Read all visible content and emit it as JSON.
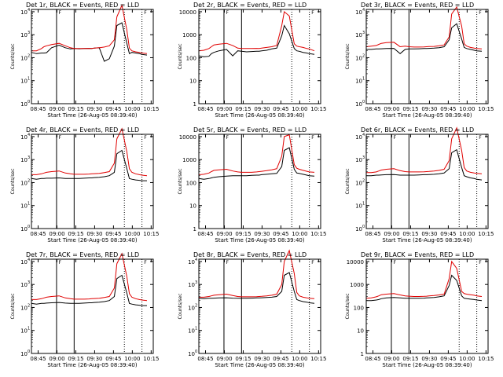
{
  "figure": {
    "x_tick_labels": [
      "08:45",
      "09:00",
      "09:15",
      "09:30",
      "09:45",
      "10:00",
      "10:15"
    ],
    "xlabel": "Start Time (26-Aug-05 08:39:40)",
    "ylabel": "Counts/sec",
    "colors": {
      "events": "#000000",
      "lld": "#e00000",
      "axes": "#000000"
    }
  },
  "chart_data": [
    {
      "type": "line",
      "title": "Det 1r, BLACK = Events, RED = LLD",
      "marker": "F",
      "ytick_style": "exp",
      "x_minutes": [
        0,
        4,
        8,
        10,
        12,
        16,
        22,
        27,
        31,
        34,
        38,
        42,
        46,
        48,
        50,
        54,
        58,
        62,
        66,
        68,
        72,
        76,
        78,
        80,
        83,
        86,
        88,
        92
      ],
      "series": [
        {
          "name": "Events",
          "values": [
            170,
            150,
            160,
            160,
            165,
            270,
            350,
            270,
            240,
            250,
            245,
            250,
            255,
            250,
            260,
            270,
            70,
            90,
            320,
            2500,
            3300,
            420,
            150,
            170,
            160,
            150,
            140,
            130
          ]
        },
        {
          "name": "LLD",
          "values": [
            200,
            200,
            250,
            300,
            330,
            370,
            420,
            330,
            270,
            250,
            250,
            250,
            255,
            250,
            260,
            270,
            290,
            330,
            600,
            6000,
            19000,
            1600,
            260,
            200,
            180,
            170,
            160,
            150
          ]
        }
      ]
    },
    {
      "type": "line",
      "title": "Det 2r, BLACK = Events, RED = LLD",
      "marker": "F",
      "ytick_style": "lin",
      "x_minutes": [
        0,
        4,
        8,
        10,
        12,
        16,
        22,
        27,
        31,
        34,
        38,
        42,
        46,
        48,
        50,
        54,
        58,
        62,
        66,
        68,
        72,
        76,
        78,
        80,
        83,
        86,
        88,
        92
      ],
      "series": [
        {
          "name": "Events",
          "values": [
            120,
            110,
            115,
            150,
            170,
            200,
            230,
            120,
            200,
            190,
            180,
            185,
            190,
            190,
            200,
            210,
            240,
            260,
            900,
            2500,
            1100,
            250,
            200,
            190,
            170,
            160,
            150,
            140
          ]
        },
        {
          "name": "LLD",
          "values": [
            200,
            210,
            250,
            300,
            360,
            390,
            420,
            340,
            260,
            250,
            250,
            250,
            255,
            250,
            260,
            280,
            300,
            340,
            2500,
            10000,
            6500,
            400,
            320,
            300,
            280,
            250,
            240,
            200
          ]
        }
      ]
    },
    {
      "type": "line",
      "title": "Det 3r, BLACK = Events, RED = LLD",
      "marker": "F",
      "ytick_style": "exp",
      "x_minutes": [
        0,
        4,
        8,
        10,
        12,
        16,
        22,
        27,
        31,
        34,
        38,
        42,
        46,
        48,
        50,
        54,
        58,
        62,
        66,
        68,
        72,
        76,
        78,
        80,
        83,
        86,
        88,
        92
      ],
      "series": [
        {
          "name": "Events",
          "values": [
            230,
            230,
            240,
            240,
            245,
            250,
            255,
            150,
            230,
            240,
            240,
            245,
            250,
            250,
            255,
            260,
            270,
            300,
            600,
            2000,
            3000,
            650,
            280,
            250,
            230,
            210,
            200,
            190
          ]
        },
        {
          "name": "LLD",
          "values": [
            300,
            320,
            340,
            380,
            420,
            450,
            470,
            300,
            320,
            300,
            290,
            290,
            295,
            300,
            305,
            310,
            330,
            360,
            800,
            8000,
            16000,
            2400,
            400,
            320,
            280,
            260,
            250,
            240
          ]
        }
      ]
    },
    {
      "type": "line",
      "title": "Det 4r, BLACK = Events, RED = LLD",
      "marker": "F",
      "ytick_style": "exp",
      "x_minutes": [
        0,
        4,
        8,
        10,
        12,
        16,
        22,
        27,
        31,
        34,
        38,
        42,
        46,
        48,
        50,
        54,
        58,
        62,
        66,
        68,
        72,
        76,
        78,
        80,
        83,
        86,
        88,
        92
      ],
      "series": [
        {
          "name": "Events",
          "values": [
            150,
            140,
            150,
            150,
            155,
            155,
            160,
            150,
            150,
            150,
            150,
            155,
            160,
            160,
            165,
            170,
            180,
            200,
            280,
            1800,
            2500,
            400,
            150,
            140,
            130,
            125,
            120,
            120
          ]
        },
        {
          "name": "LLD",
          "values": [
            220,
            220,
            240,
            260,
            280,
            300,
            320,
            260,
            240,
            230,
            230,
            230,
            235,
            240,
            245,
            250,
            270,
            300,
            700,
            8000,
            22000,
            2200,
            400,
            280,
            240,
            220,
            210,
            200
          ]
        }
      ]
    },
    {
      "type": "line",
      "title": "Det 5r, BLACK = Events, RED = LLD",
      "marker": "F",
      "ytick_style": "lin",
      "x_minutes": [
        0,
        4,
        8,
        10,
        12,
        16,
        22,
        27,
        31,
        34,
        38,
        42,
        46,
        48,
        50,
        54,
        58,
        62,
        66,
        68,
        72,
        76,
        78,
        80,
        83,
        86,
        88,
        92
      ],
      "series": [
        {
          "name": "Events",
          "values": [
            150,
            140,
            150,
            160,
            170,
            180,
            190,
            200,
            200,
            200,
            200,
            205,
            210,
            210,
            220,
            230,
            240,
            250,
            500,
            2500,
            3300,
            380,
            260,
            250,
            230,
            210,
            200,
            190
          ]
        },
        {
          "name": "LLD",
          "values": [
            220,
            230,
            260,
            300,
            340,
            360,
            380,
            320,
            290,
            280,
            280,
            280,
            290,
            300,
            310,
            330,
            360,
            400,
            1400,
            10000,
            12000,
            600,
            420,
            380,
            340,
            310,
            290,
            280
          ]
        }
      ]
    },
    {
      "type": "line",
      "title": "Det 6r, BLACK = Events, RED = LLD",
      "marker": "F",
      "ytick_style": "exp",
      "x_minutes": [
        0,
        4,
        8,
        10,
        12,
        16,
        22,
        27,
        31,
        34,
        38,
        42,
        46,
        48,
        50,
        54,
        58,
        62,
        66,
        68,
        72,
        76,
        78,
        80,
        83,
        86,
        88,
        92
      ],
      "series": [
        {
          "name": "Events",
          "values": [
            200,
            200,
            210,
            210,
            215,
            220,
            225,
            210,
            210,
            210,
            210,
            215,
            220,
            220,
            225,
            230,
            240,
            260,
            400,
            2000,
            2700,
            450,
            200,
            180,
            160,
            150,
            140,
            130
          ]
        },
        {
          "name": "LLD",
          "values": [
            270,
            270,
            290,
            320,
            350,
            380,
            400,
            330,
            300,
            290,
            290,
            290,
            295,
            300,
            305,
            320,
            340,
            380,
            900,
            8000,
            24000,
            2500,
            450,
            320,
            280,
            260,
            250,
            240
          ]
        }
      ]
    },
    {
      "type": "line",
      "title": "Det 7r, BLACK = Events, RED = LLD",
      "marker": "F",
      "ytick_style": "exp",
      "x_minutes": [
        0,
        4,
        8,
        10,
        12,
        16,
        22,
        27,
        31,
        34,
        38,
        42,
        46,
        48,
        50,
        54,
        58,
        62,
        66,
        68,
        72,
        76,
        78,
        80,
        83,
        86,
        88,
        92
      ],
      "series": [
        {
          "name": "Events",
          "values": [
            150,
            140,
            150,
            150,
            155,
            160,
            165,
            155,
            150,
            150,
            150,
            155,
            160,
            160,
            165,
            170,
            180,
            200,
            300,
            1800,
            2500,
            420,
            150,
            140,
            130,
            125,
            120,
            120
          ]
        },
        {
          "name": "LLD",
          "values": [
            220,
            220,
            240,
            260,
            280,
            300,
            320,
            260,
            240,
            230,
            230,
            230,
            235,
            240,
            245,
            250,
            270,
            300,
            700,
            8000,
            22000,
            2200,
            400,
            280,
            240,
            220,
            210,
            200
          ]
        }
      ]
    },
    {
      "type": "line",
      "title": "Det 8r, BLACK = Events, RED = LLD",
      "marker": "F",
      "ytick_style": "exp",
      "x_minutes": [
        0,
        4,
        8,
        10,
        12,
        16,
        22,
        27,
        31,
        34,
        38,
        42,
        46,
        48,
        50,
        54,
        58,
        62,
        66,
        68,
        72,
        76,
        78,
        80,
        83,
        86,
        88,
        92
      ],
      "series": [
        {
          "name": "Events",
          "values": [
            250,
            240,
            250,
            250,
            255,
            260,
            265,
            255,
            250,
            250,
            250,
            255,
            260,
            260,
            265,
            270,
            280,
            300,
            500,
            2500,
            3300,
            500,
            220,
            200,
            180,
            170,
            160,
            150
          ]
        },
        {
          "name": "LLD",
          "values": [
            280,
            280,
            300,
            320,
            340,
            360,
            380,
            330,
            300,
            290,
            290,
            290,
            295,
            300,
            305,
            320,
            340,
            380,
            1000,
            10000,
            30000,
            3000,
            450,
            320,
            280,
            260,
            250,
            240
          ]
        }
      ]
    },
    {
      "type": "line",
      "title": "Det 9r, BLACK = Events, RED = LLD",
      "marker": "F",
      "ytick_style": "lin",
      "x_minutes": [
        0,
        4,
        8,
        10,
        12,
        16,
        22,
        27,
        31,
        34,
        38,
        42,
        46,
        48,
        50,
        54,
        58,
        62,
        66,
        68,
        72,
        76,
        78,
        80,
        83,
        86,
        88,
        92
      ],
      "series": [
        {
          "name": "Events",
          "values": [
            200,
            200,
            210,
            220,
            240,
            260,
            270,
            260,
            250,
            250,
            250,
            250,
            255,
            260,
            265,
            270,
            290,
            320,
            900,
            2500,
            1500,
            320,
            250,
            240,
            230,
            220,
            210,
            200
          ]
        },
        {
          "name": "LLD",
          "values": [
            250,
            260,
            290,
            320,
            360,
            380,
            400,
            350,
            320,
            310,
            300,
            300,
            305,
            310,
            320,
            330,
            350,
            380,
            1800,
            10000,
            5000,
            500,
            400,
            380,
            360,
            340,
            320,
            300
          ]
        }
      ]
    }
  ]
}
